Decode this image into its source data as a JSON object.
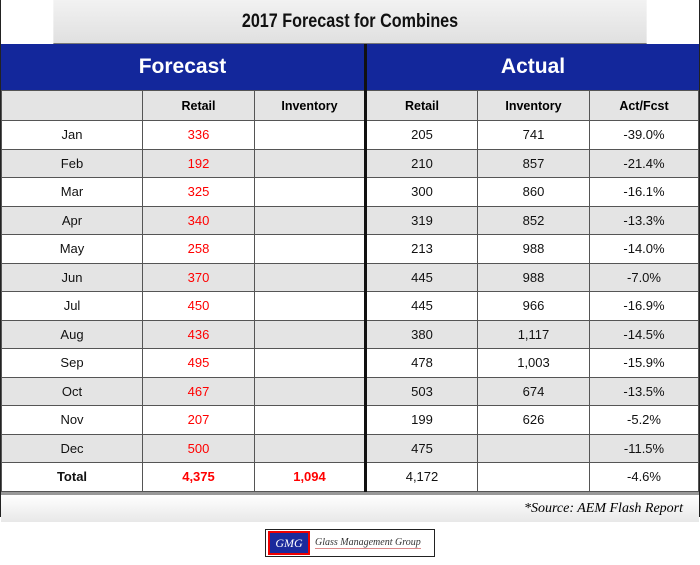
{
  "title": "2017 Forecast for Combines",
  "groups": {
    "forecast": "Forecast",
    "actual": "Actual"
  },
  "columns": [
    "",
    "Retail",
    "Inventory",
    "Retail",
    "Inventory",
    "Act/Fcst"
  ],
  "rows": [
    [
      "Jan",
      "336",
      "",
      "205",
      "741",
      "-39.0%"
    ],
    [
      "Feb",
      "192",
      "",
      "210",
      "857",
      "-21.4%"
    ],
    [
      "Mar",
      "325",
      "",
      "300",
      "860",
      "-16.1%"
    ],
    [
      "Apr",
      "340",
      "",
      "319",
      "852",
      "-13.3%"
    ],
    [
      "May",
      "258",
      "",
      "213",
      "988",
      "-14.0%"
    ],
    [
      "Jun",
      "370",
      "",
      "445",
      "988",
      "-7.0%"
    ],
    [
      "Jul",
      "450",
      "",
      "445",
      "966",
      "-16.9%"
    ],
    [
      "Aug",
      "436",
      "",
      "380",
      "1,117",
      "-14.5%"
    ],
    [
      "Sep",
      "495",
      "",
      "478",
      "1,003",
      "-15.9%"
    ],
    [
      "Oct",
      "467",
      "",
      "503",
      "674",
      "-13.5%"
    ],
    [
      "Nov",
      "207",
      "",
      "199",
      "626",
      "-5.2%"
    ],
    [
      "Dec",
      "500",
      "",
      "475",
      "",
      "-11.5%"
    ]
  ],
  "total": [
    "Total",
    "4,375",
    "1,094",
    "4,172",
    "",
    "-4.6%"
  ],
  "source": "*Source: AEM Flash Report",
  "logo": {
    "mark": "GMG",
    "name": "Glass Management Group"
  },
  "colors": {
    "header_blue": "#13279b",
    "forecast_red": "#ff0000"
  }
}
